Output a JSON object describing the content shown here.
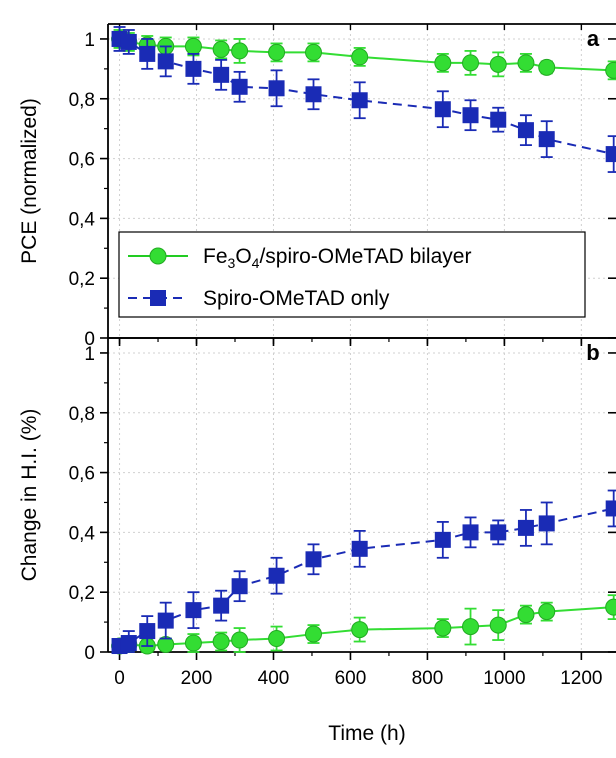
{
  "chart_data": [
    {
      "panel_label": "a",
      "type": "line",
      "ylabel": "PCE (normalized)",
      "xlabel": "",
      "xlim": [
        -30,
        1290
      ],
      "ylim": [
        0,
        1.05
      ],
      "xticks": [
        0,
        200,
        400,
        600,
        800,
        1000,
        1200
      ],
      "yticks": [
        0,
        0.2,
        0.4,
        0.6,
        0.8,
        1
      ],
      "ytick_labels": [
        "0",
        "0,2",
        "0,4",
        "0,6",
        "0,8",
        "1"
      ],
      "grid": true,
      "legend_position": "lower-left",
      "series": [
        {
          "name": "Fe3O4/spiro-OMeTAD bilayer",
          "color": "#33dd33",
          "marker": "circle",
          "line": "solid",
          "x": [
            0,
            24,
            72,
            120,
            192,
            264,
            312,
            408,
            504,
            624,
            840,
            912,
            984,
            1056,
            1110,
            1284
          ],
          "y": [
            1.0,
            0.99,
            0.98,
            0.975,
            0.975,
            0.965,
            0.96,
            0.955,
            0.955,
            0.94,
            0.92,
            0.92,
            0.915,
            0.92,
            0.905,
            0.895
          ],
          "err": [
            0.03,
            0.03,
            0.03,
            0.03,
            0.03,
            0.03,
            0.04,
            0.03,
            0.03,
            0.03,
            0.03,
            0.04,
            0.04,
            0.03,
            0.02,
            0.03
          ]
        },
        {
          "name": "Spiro-OMeTAD only",
          "color": "#1a2bb5",
          "marker": "square",
          "line": "dashed",
          "x": [
            0,
            24,
            72,
            120,
            192,
            264,
            312,
            408,
            504,
            624,
            840,
            912,
            984,
            1056,
            1110,
            1284
          ],
          "y": [
            1.0,
            0.99,
            0.95,
            0.925,
            0.9,
            0.88,
            0.84,
            0.835,
            0.815,
            0.795,
            0.765,
            0.745,
            0.73,
            0.695,
            0.665,
            0.615
          ],
          "err": [
            0.04,
            0.04,
            0.05,
            0.05,
            0.05,
            0.05,
            0.05,
            0.06,
            0.05,
            0.06,
            0.06,
            0.05,
            0.04,
            0.05,
            0.06,
            0.06
          ]
        }
      ]
    },
    {
      "panel_label": "b",
      "type": "line",
      "ylabel": "Change in H.I. (%)",
      "xlabel": "Time (h)",
      "xlim": [
        -30,
        1290
      ],
      "ylim": [
        0,
        1.05
      ],
      "xticks": [
        0,
        200,
        400,
        600,
        800,
        1000,
        1200
      ],
      "xtick_labels": [
        "0",
        "200",
        "400",
        "600",
        "800",
        "1000",
        "1200"
      ],
      "yticks": [
        0,
        0.2,
        0.4,
        0.6,
        0.8,
        1
      ],
      "ytick_labels": [
        "0",
        "0,2",
        "0,4",
        "0,6",
        "0,8",
        "1"
      ],
      "grid": true,
      "series": [
        {
          "name": "Fe3O4/spiro-OMeTAD bilayer",
          "color": "#33dd33",
          "marker": "circle",
          "line": "solid",
          "x": [
            0,
            24,
            72,
            120,
            192,
            264,
            312,
            408,
            504,
            624,
            840,
            912,
            984,
            1056,
            1110,
            1284
          ],
          "y": [
            0.02,
            0.025,
            0.02,
            0.025,
            0.03,
            0.035,
            0.04,
            0.045,
            0.06,
            0.075,
            0.08,
            0.085,
            0.09,
            0.125,
            0.135,
            0.15
          ],
          "err": [
            0.02,
            0.02,
            0.02,
            0.02,
            0.03,
            0.03,
            0.04,
            0.04,
            0.03,
            0.04,
            0.03,
            0.06,
            0.05,
            0.03,
            0.03,
            0.04
          ]
        },
        {
          "name": "Spiro-OMeTAD only",
          "color": "#1a2bb5",
          "marker": "square",
          "line": "dashed",
          "x": [
            0,
            24,
            72,
            120,
            192,
            264,
            312,
            408,
            504,
            624,
            840,
            912,
            984,
            1056,
            1110,
            1284
          ],
          "y": [
            0.02,
            0.03,
            0.07,
            0.105,
            0.14,
            0.155,
            0.22,
            0.255,
            0.31,
            0.345,
            0.375,
            0.4,
            0.4,
            0.415,
            0.43,
            0.48
          ],
          "err": [
            0.02,
            0.04,
            0.05,
            0.06,
            0.06,
            0.05,
            0.05,
            0.06,
            0.05,
            0.06,
            0.06,
            0.05,
            0.04,
            0.06,
            0.07,
            0.06
          ]
        }
      ]
    }
  ],
  "legend": {
    "bilayer_pre": "Fe",
    "bilayer_sub1": "3",
    "bilayer_mid": "O",
    "bilayer_sub2": "4",
    "bilayer_post": "/spiro-OMeTAD bilayer",
    "spiro": "Spiro-OMeTAD only"
  }
}
